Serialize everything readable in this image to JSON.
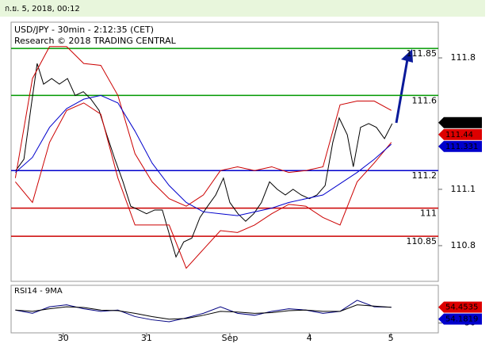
{
  "header": "ก.ย. 5, 2018, 00:12",
  "chart_data": [
    {
      "type": "line",
      "title": "USD/JPY - 30min - 2:12:35 (CET)",
      "subtitle": "Research © 2018 TRADING CENTRAL",
      "xlim": [
        0,
        100
      ],
      "ylim": [
        110.61,
        111.99
      ],
      "yticks": [
        110.8,
        111.1,
        111.8
      ],
      "levels": [
        {
          "value": 111.85,
          "color": "#009900"
        },
        {
          "value": 111.6,
          "color": "#009900"
        },
        {
          "value": 111.2,
          "color": "#0000cc"
        },
        {
          "value": 111,
          "color": "#cc0000"
        },
        {
          "value": 110.85,
          "color": "#cc0000"
        }
      ],
      "tags": [
        {
          "value": 111.455,
          "color": "#000000"
        },
        {
          "value": 111.44,
          "color": "#dd0000"
        },
        {
          "value": 111.331,
          "color": "#0000cc"
        }
      ],
      "series": [
        {
          "color": "#000000",
          "x": [
            1.1,
            3.0,
            4.8,
            6.1,
            7.6,
            9.5,
            11.3,
            13.2,
            15.0,
            16.9,
            18.7,
            20.6,
            22.4,
            24.3,
            26.2,
            28.0,
            29.9,
            31.7,
            33.6,
            35.4,
            37.3,
            38.6,
            40.4,
            42.3,
            44.2,
            46.0,
            47.9,
            49.7,
            51.2,
            53.1,
            54.9,
            56.8,
            58.6,
            60.5,
            62.3,
            64.2,
            66.0,
            67.9,
            69.8,
            71.6,
            73.5,
            75.3,
            76.8,
            78.7,
            80.1,
            81.8,
            83.7,
            85.5,
            87.4,
            89.2
          ],
          "values": [
            111.2,
            111.26,
            111.56,
            111.77,
            111.66,
            111.69,
            111.66,
            111.69,
            111.6,
            111.62,
            111.58,
            111.52,
            111.39,
            111.26,
            111.14,
            111.01,
            110.99,
            110.97,
            110.99,
            110.99,
            110.84,
            110.74,
            110.82,
            110.84,
            110.95,
            111.01,
            111.07,
            111.16,
            111.03,
            110.97,
            110.93,
            110.97,
            111.03,
            111.14,
            111.1,
            111.07,
            111.1,
            111.07,
            111.05,
            111.07,
            111.12,
            111.35,
            111.48,
            111.39,
            111.22,
            111.43,
            111.45,
            111.43,
            111.37,
            111.45
          ]
        },
        {
          "color": "#cc0000",
          "x": [
            1,
            5,
            9,
            13,
            17,
            21,
            25,
            29,
            33,
            37,
            41,
            45,
            49,
            53,
            57,
            61,
            65,
            69,
            73,
            77,
            81,
            85,
            89
          ],
          "values": [
            111.16,
            111.69,
            111.86,
            111.86,
            111.77,
            111.76,
            111.6,
            111.29,
            111.14,
            111.05,
            111.01,
            111.07,
            111.2,
            111.22,
            111.2,
            111.22,
            111.19,
            111.2,
            111.22,
            111.55,
            111.57,
            111.57,
            111.52
          ]
        },
        {
          "color": "#cc0000",
          "x": [
            1,
            5,
            9,
            13,
            17,
            21,
            25,
            29,
            33,
            37,
            41,
            45,
            49,
            53,
            57,
            61,
            65,
            69,
            73,
            77,
            81,
            85,
            89
          ],
          "values": [
            111.14,
            111.03,
            111.35,
            111.52,
            111.56,
            111.5,
            111.16,
            110.91,
            110.91,
            110.91,
            110.68,
            110.78,
            110.88,
            110.87,
            110.91,
            110.97,
            111.02,
            111.01,
            110.95,
            110.91,
            111.14,
            111.24,
            111.35
          ]
        },
        {
          "color": "#0000cc",
          "x": [
            1,
            5,
            9,
            13,
            17,
            21,
            25,
            29,
            33,
            37,
            41,
            45,
            49,
            53,
            57,
            61,
            65,
            69,
            73,
            77,
            81,
            85,
            89
          ],
          "values": [
            111.19,
            111.27,
            111.43,
            111.53,
            111.58,
            111.6,
            111.56,
            111.41,
            111.24,
            111.12,
            111.03,
            110.98,
            110.97,
            110.96,
            110.98,
            111.0,
            111.03,
            111.05,
            111.07,
            111.13,
            111.19,
            111.26,
            111.34
          ]
        }
      ]
    },
    {
      "type": "line",
      "title": "RSI14 - 9MA",
      "xlim": [
        0,
        100
      ],
      "ylim": [
        15,
        88
      ],
      "yticks": [
        30
      ],
      "xticks": [
        {
          "value": 12.2,
          "label": "30"
        },
        {
          "value": 31.7,
          "label": "31"
        },
        {
          "value": 51.2,
          "label": "Sep"
        },
        {
          "value": 69.8,
          "label": "4"
        },
        {
          "value": 88.9,
          "label": "5"
        }
      ],
      "tags": [
        {
          "value": 54.4535,
          "color": "#dd0000"
        },
        {
          "value": 54.1819,
          "color": "#0000cc"
        }
      ],
      "series": [
        {
          "color": "#000080",
          "x": [
            1,
            5,
            9,
            13,
            17,
            21,
            25,
            29,
            33,
            37,
            41,
            45,
            49,
            53,
            57,
            61,
            65,
            69,
            73,
            77,
            81,
            85,
            89
          ],
          "values": [
            50,
            45,
            55,
            58,
            52,
            48,
            50,
            40,
            35,
            32,
            38,
            45,
            55,
            45,
            42,
            48,
            52,
            50,
            45,
            48,
            65,
            55,
            54.45
          ]
        },
        {
          "color": "#000000",
          "x": [
            1,
            5,
            9,
            13,
            17,
            21,
            25,
            29,
            33,
            37,
            41,
            45,
            49,
            53,
            57,
            61,
            65,
            69,
            73,
            77,
            81,
            85,
            89
          ],
          "values": [
            50,
            48,
            52,
            55,
            54,
            50,
            49,
            45,
            40,
            36,
            37,
            42,
            48,
            47,
            45,
            46,
            49,
            50,
            48,
            48,
            58,
            56,
            54.18
          ]
        }
      ]
    }
  ]
}
